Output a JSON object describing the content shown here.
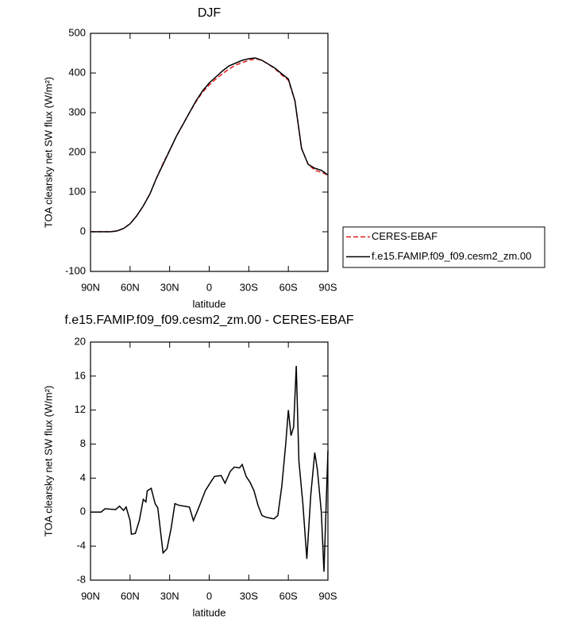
{
  "chart_data": [
    {
      "type": "line",
      "title": "DJF",
      "x_label": "latitude",
      "y_label": "TOA clearsky net SW flux (W/m²)",
      "x": [
        90,
        85,
        80,
        75,
        70,
        65,
        60,
        55,
        50,
        45,
        40,
        35,
        30,
        25,
        20,
        15,
        10,
        5,
        0,
        -5,
        -10,
        -15,
        -20,
        -25,
        -30,
        -35,
        -40,
        -45,
        -50,
        -55,
        -60,
        -65,
        -70,
        -75,
        -80,
        -85,
        -90
      ],
      "series": [
        {
          "name": "CERES-EBAF",
          "color": "#e41a1c",
          "style": "dashed",
          "values": [
            0,
            0,
            0,
            0,
            2,
            8,
            20,
            40,
            65,
            95,
            135,
            172,
            205,
            240,
            270,
            300,
            328,
            352,
            370,
            385,
            398,
            410,
            420,
            426,
            432,
            436,
            432,
            422,
            410,
            395,
            382,
            330,
            210,
            170,
            155,
            150,
            143
          ]
        },
        {
          "name": "f.e15.FAMIP.f09_f09.cesm2_zm.00",
          "color": "#000000",
          "style": "solid",
          "values": [
            0,
            0,
            0,
            0,
            2,
            8,
            20,
            40,
            65,
            95,
            135,
            170,
            205,
            240,
            270,
            300,
            330,
            355,
            375,
            390,
            405,
            418,
            425,
            432,
            436,
            438,
            432,
            422,
            412,
            398,
            385,
            330,
            210,
            170,
            160,
            155,
            143
          ]
        }
      ],
      "xlim": [
        90,
        -90
      ],
      "xticks": [
        {
          "value": 90,
          "label": "90N"
        },
        {
          "value": 60,
          "label": "60N"
        },
        {
          "value": 30,
          "label": "30N"
        },
        0,
        {
          "value": -30,
          "label": "30S"
        },
        {
          "value": -60,
          "label": "60S"
        },
        {
          "value": -90,
          "label": "90S"
        }
      ],
      "ylim": [
        -100,
        500
      ],
      "yticks": [
        -100,
        0,
        100,
        200,
        300,
        400,
        500
      ],
      "legend": "outside-right"
    },
    {
      "type": "line",
      "title": "f.e15.FAMIP.f09_f09.cesm2_zm.00 - CERES-EBAF",
      "x_label": "latitude",
      "y_label": "TOA clearsky net SW flux (W/m²)",
      "x": [
        90,
        82,
        79,
        71,
        68,
        65,
        63,
        60,
        59,
        56,
        53,
        50,
        48,
        47,
        44,
        41,
        39,
        35,
        32,
        29,
        26,
        23,
        19,
        15,
        12,
        8,
        3,
        -1,
        -4,
        -9,
        -12,
        -16,
        -19,
        -23,
        -25,
        -28,
        -31,
        -34,
        -37,
        -40,
        -43,
        -46,
        -49,
        -52,
        -55,
        -58,
        -60,
        -62,
        -64,
        -66,
        -68,
        -71,
        -74,
        -77,
        -80,
        -82,
        -85,
        -87,
        -90
      ],
      "color": "#000000",
      "values": [
        0,
        0,
        0.4,
        0.3,
        0.7,
        0.2,
        0.6,
        -1,
        -2.6,
        -2.5,
        -1,
        1.5,
        1.2,
        2.5,
        2.8,
        1,
        0.5,
        -4.8,
        -4.3,
        -2,
        1,
        0.8,
        0.7,
        0.6,
        -1,
        0.5,
        2.5,
        3.5,
        4.2,
        4.3,
        3.4,
        4.8,
        5.3,
        5.2,
        5.6,
        4.2,
        3.5,
        2.5,
        0.8,
        -0.4,
        -0.6,
        -0.7,
        -0.8,
        -0.4,
        3,
        8,
        12,
        9,
        10,
        17.2,
        6,
        1,
        -5.5,
        2,
        7,
        5,
        0,
        -7,
        7.2
      ],
      "xlim": [
        90,
        -90
      ],
      "xticks": [
        {
          "value": 90,
          "label": "90N"
        },
        {
          "value": 60,
          "label": "60N"
        },
        {
          "value": 30,
          "label": "30N"
        },
        0,
        {
          "value": -30,
          "label": "30S"
        },
        {
          "value": -60,
          "label": "60S"
        },
        {
          "value": -90,
          "label": "90S"
        }
      ],
      "ylim": [
        -8,
        20
      ],
      "yticks": [
        -8,
        -4,
        0,
        4,
        8,
        12,
        16,
        20
      ]
    }
  ]
}
